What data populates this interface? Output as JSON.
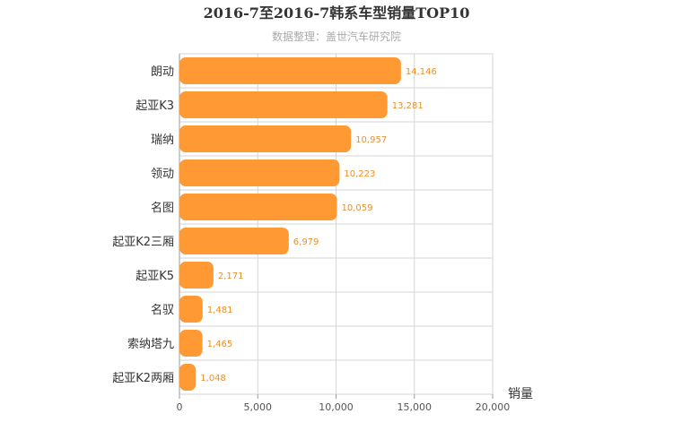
{
  "chart_data": {
    "type": "bar",
    "orientation": "horizontal",
    "title": "2016-7至2016-7韩系车型销量TOP10",
    "subtitle": "数据整理：盖世汽车研究院",
    "categories": [
      "朗动",
      "起亚K3",
      "瑞纳",
      "领动",
      "名图",
      "起亚K2三厢",
      "起亚K5",
      "名驭",
      "索纳塔九",
      "起亚K2两厢"
    ],
    "values": [
      14146,
      13281,
      10957,
      10223,
      10059,
      6979,
      2171,
      1481,
      1465,
      1048
    ],
    "value_labels": [
      "14,146",
      "13,281",
      "10,957",
      "10,223",
      "10,059",
      "6,979",
      "2,171",
      "1,481",
      "1,465",
      "1,048"
    ],
    "xlabel": "销量",
    "xlim": [
      0,
      20000
    ],
    "x_ticks": [
      0,
      5000,
      10000,
      15000,
      20000
    ],
    "x_tick_labels": [
      "0",
      "5,000",
      "10,000",
      "15,000",
      "20,000"
    ],
    "grid": true,
    "legend": "none",
    "bar_color": "#ff9933",
    "label_color": "#e8902e"
  }
}
